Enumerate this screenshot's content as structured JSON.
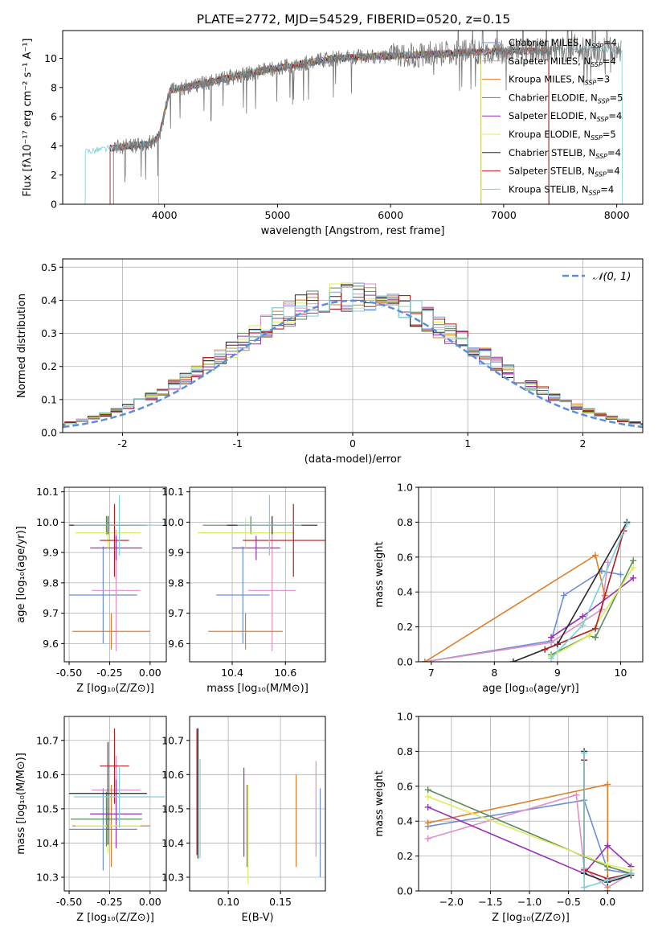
{
  "figure": {
    "title": "PLATE=2772, MJD=54529, FIBERID=0520, z=0.15"
  },
  "colors": {
    "Chabrier MILES": "#6d8fd9",
    "Salpeter MILES": "#e08fc4",
    "Kroupa MILES": "#dd7f2a",
    "Chabrier ELODIE": "#5e8a5c",
    "Salpeter ELODIE": "#9a2fb5",
    "Kroupa ELODIE": "#dcec5e",
    "Chabrier STELIB": "#2a2a2a",
    "Salpeter STELIB": "#b01f1f",
    "Kroupa STELIB": "#7ecfd9",
    "observed": "#7a7a7a",
    "normal": "#5a8fd8"
  },
  "chart_data": [
    {
      "id": "spectrum",
      "type": "line",
      "xlabel": "wavelength [Angstrom, rest frame]",
      "ylabel": "Flux [fλ10⁻¹⁷ erg cm⁻² s⁻¹ A⁻¹]",
      "xlim": [
        3100,
        8230
      ],
      "ylim": [
        0,
        11.9
      ],
      "xticks": [
        4000,
        5000,
        6000,
        7000,
        8000
      ],
      "yticks": [
        0,
        2,
        4,
        6,
        8,
        10
      ],
      "legend": [
        {
          "name": "Chabrier MILES",
          "nssp": "4"
        },
        {
          "name": "Salpeter MILES",
          "nssp": "4"
        },
        {
          "name": "Kroupa MILES",
          "nssp": "3"
        },
        {
          "name": "Chabrier ELODIE",
          "nssp": "5"
        },
        {
          "name": "Salpeter ELODIE",
          "nssp": "4"
        },
        {
          "name": "Kroupa ELODIE",
          "nssp": "5"
        },
        {
          "name": "Chabrier STELIB",
          "nssp": "4"
        },
        {
          "name": "Salpeter STELIB",
          "nssp": "4"
        },
        {
          "name": "Kroupa STELIB",
          "nssp": "4"
        }
      ],
      "continuum": {
        "wavelength": [
          3300,
          3500,
          3700,
          3850,
          3950,
          4050,
          4300,
          4600,
          4900,
          5200,
          5500,
          5800,
          6100,
          6400,
          6700,
          7000,
          7300,
          7600,
          7900,
          8050
        ],
        "flux": [
          3.6,
          3.8,
          4.0,
          4.1,
          4.6,
          7.8,
          8.2,
          8.7,
          9.2,
          9.6,
          10.0,
          10.1,
          10.2,
          10.3,
          10.4,
          10.5,
          10.5,
          10.6,
          10.6,
          10.6
        ]
      }
    },
    {
      "id": "residuals",
      "type": "step",
      "xlabel": "(data-model)/error",
      "ylabel": "Normed distribution",
      "xlim": [
        -2.52,
        2.52
      ],
      "ylim": [
        0,
        0.525
      ],
      "xticks": [
        -2,
        -1,
        0,
        1,
        2
      ],
      "yticks": [
        0.0,
        0.1,
        0.2,
        0.3,
        0.4,
        0.5
      ],
      "legend": "𝒩(0, 1)",
      "bin_width": 0.1
    },
    {
      "id": "age_Z",
      "type": "errorbar",
      "xlabel": "Z [log₁₀(Z/Z⊙)]",
      "ylabel": "age  [log₁₀(age/yr)]",
      "xlim": [
        -0.53,
        0.1
      ],
      "ylim": [
        9.54,
        10.115
      ],
      "xticks": [
        -0.5,
        -0.25,
        0.0
      ],
      "xticklabels": [
        "-0.50",
        "-0.25",
        "0.00"
      ],
      "yticks": [
        9.6,
        9.7,
        9.8,
        9.9,
        10.0,
        10.1
      ],
      "points": [
        {
          "series": "Chabrier MILES",
          "x": -0.29,
          "xerr": 0.21,
          "y": 9.76,
          "yerr": 0.16
        },
        {
          "series": "Salpeter MILES",
          "x": -0.21,
          "xerr": 0.15,
          "y": 9.775,
          "yerr": 0.2
        },
        {
          "series": "Kroupa MILES",
          "x": -0.24,
          "xerr": 0.24,
          "y": 9.64,
          "yerr": 0.06
        },
        {
          "series": "Chabrier ELODIE",
          "x": -0.27,
          "xerr": 0.22,
          "y": 9.99,
          "yerr": 0.03
        },
        {
          "series": "Salpeter ELODIE",
          "x": -0.21,
          "xerr": 0.16,
          "y": 9.915,
          "yerr": 0.04
        },
        {
          "series": "Kroupa ELODIE",
          "x": -0.26,
          "xerr": 0.2,
          "y": 9.965,
          "yerr": 0.05
        },
        {
          "series": "Chabrier STELIB",
          "x": -0.26,
          "xerr": 0.24,
          "y": 9.99,
          "yerr": 0.03
        },
        {
          "series": "Salpeter STELIB",
          "x": -0.22,
          "xerr": 0.09,
          "y": 9.94,
          "yerr": 0.12
        },
        {
          "series": "Kroupa STELIB",
          "x": -0.19,
          "xerr": 0.28,
          "y": 9.99,
          "yerr": 0.1
        }
      ]
    },
    {
      "id": "age_mass",
      "type": "errorbar",
      "xlabel": "mass [log₁₀(M/M⊙)]",
      "ylabel": "",
      "xlim": [
        10.24,
        10.75
      ],
      "ylim": [
        9.54,
        10.115
      ],
      "xticks": [
        10.4,
        10.6
      ],
      "xticklabels": [
        "10.4",
        "10.6"
      ],
      "yticks": [
        9.6,
        9.7,
        9.8,
        9.9,
        10.0,
        10.1
      ],
      "points": [
        {
          "series": "Chabrier MILES",
          "x": 10.44,
          "xerr": 0.1,
          "y": 9.76,
          "yerr": 0.16
        },
        {
          "series": "Salpeter MILES",
          "x": 10.55,
          "xerr": 0.09,
          "y": 9.775,
          "yerr": 0.2
        },
        {
          "series": "Kroupa MILES",
          "x": 10.45,
          "xerr": 0.14,
          "y": 9.64,
          "yerr": 0.06
        },
        {
          "series": "Chabrier ELODIE",
          "x": 10.47,
          "xerr": 0.18,
          "y": 9.99,
          "yerr": 0.03
        },
        {
          "series": "Salpeter ELODIE",
          "x": 10.49,
          "xerr": 0.09,
          "y": 9.915,
          "yerr": 0.04
        },
        {
          "series": "Kroupa ELODIE",
          "x": 10.45,
          "xerr": 0.18,
          "y": 9.965,
          "yerr": 0.05
        },
        {
          "series": "Chabrier STELIB",
          "x": 10.55,
          "xerr": 0.17,
          "y": 9.99,
          "yerr": 0.03
        },
        {
          "series": "Salpeter STELIB",
          "x": 10.63,
          "xerr": 0.19,
          "y": 9.94,
          "yerr": 0.12
        },
        {
          "series": "Kroupa STELIB",
          "x": 10.54,
          "xerr": 0.12,
          "y": 9.99,
          "yerr": 0.1
        }
      ]
    },
    {
      "id": "massweight_age",
      "type": "line",
      "xlabel": "age  [log₁₀(age/yr)]",
      "ylabel": "mass weight",
      "xlim": [
        6.8,
        10.35
      ],
      "ylim": [
        0,
        1.0
      ],
      "xticks": [
        7,
        8,
        9,
        10
      ],
      "yticks": [
        0.0,
        0.2,
        0.4,
        0.6,
        0.8,
        1.0
      ],
      "series": [
        {
          "name": "Chabrier MILES",
          "x": [
            6.9,
            8.9,
            9.1,
            9.7,
            10.0
          ],
          "y": [
            0.0,
            0.12,
            0.38,
            0.52,
            0.5
          ]
        },
        {
          "name": "Salpeter MILES",
          "x": [
            6.9,
            8.9,
            9.7,
            9.8
          ],
          "y": [
            0.0,
            0.11,
            0.3,
            0.57
          ]
        },
        {
          "name": "Kroupa MILES",
          "x": [
            6.9,
            9.6,
            9.75
          ],
          "y": [
            0.0,
            0.61,
            0.38
          ]
        },
        {
          "name": "Chabrier ELODIE",
          "x": [
            8.9,
            9.5,
            9.6,
            10.2
          ],
          "y": [
            0.04,
            0.15,
            0.14,
            0.58
          ]
        },
        {
          "name": "Salpeter ELODIE",
          "x": [
            8.9,
            9.4,
            10.2
          ],
          "y": [
            0.14,
            0.26,
            0.48
          ]
        },
        {
          "name": "Kroupa ELODIE",
          "x": [
            8.9,
            9.5,
            10.2
          ],
          "y": [
            0.03,
            0.15,
            0.54
          ]
        },
        {
          "name": "Chabrier STELIB",
          "x": [
            8.3,
            9.0,
            10.1
          ],
          "y": [
            0.0,
            0.1,
            0.8
          ]
        },
        {
          "name": "Salpeter STELIB",
          "x": [
            8.8,
            9.6,
            10.05
          ],
          "y": [
            0.07,
            0.19,
            0.75
          ]
        },
        {
          "name": "Kroupa STELIB",
          "x": [
            8.9,
            9.4,
            10.1
          ],
          "y": [
            0.02,
            0.21,
            0.79
          ]
        }
      ]
    },
    {
      "id": "mass_Z",
      "type": "errorbar",
      "xlabel": "Z [log₁₀(Z/Z⊙)]",
      "ylabel": "mass [log₁₀(M/M⊙)]",
      "xlim": [
        -0.53,
        0.1
      ],
      "ylim": [
        10.26,
        10.77
      ],
      "xticks": [
        -0.5,
        -0.25,
        0.0
      ],
      "xticklabels": [
        "-0.50",
        "-0.25",
        "0.00"
      ],
      "yticks": [
        10.3,
        10.4,
        10.5,
        10.6,
        10.7
      ],
      "points": [
        {
          "series": "Chabrier MILES",
          "x": -0.29,
          "xerr": 0.21,
          "y": 10.44,
          "yerr": 0.12
        },
        {
          "series": "Salpeter MILES",
          "x": -0.21,
          "xerr": 0.15,
          "y": 10.555,
          "yerr": 0.1
        },
        {
          "series": "Kroupa MILES",
          "x": -0.24,
          "xerr": 0.24,
          "y": 10.45,
          "yerr": 0.12
        },
        {
          "series": "Chabrier ELODIE",
          "x": -0.27,
          "xerr": 0.22,
          "y": 10.47,
          "yerr": 0.08
        },
        {
          "series": "Salpeter ELODIE",
          "x": -0.21,
          "xerr": 0.16,
          "y": 10.485,
          "yerr": 0.1
        },
        {
          "series": "Kroupa ELODIE",
          "x": -0.26,
          "xerr": 0.2,
          "y": 10.45,
          "yerr": 0.08
        },
        {
          "series": "Chabrier STELIB",
          "x": -0.26,
          "xerr": 0.24,
          "y": 10.545,
          "yerr": 0.15
        },
        {
          "series": "Salpeter STELIB",
          "x": -0.22,
          "xerr": 0.09,
          "y": 10.625,
          "yerr": 0.11
        },
        {
          "series": "Kroupa STELIB",
          "x": -0.19,
          "xerr": 0.28,
          "y": 10.535,
          "yerr": 0.09
        }
      ]
    },
    {
      "id": "mass_EBV",
      "type": "errorbar",
      "xlabel": "E(B-V)",
      "ylabel": "",
      "xlim": [
        0.063,
        0.193
      ],
      "ylim": [
        10.26,
        10.77
      ],
      "xticks": [
        0.1,
        0.15
      ],
      "xticklabels": [
        "0.10",
        "0.15"
      ],
      "yticks": [
        10.3,
        10.4,
        10.5,
        10.6,
        10.7
      ],
      "points": [
        {
          "series": "Chabrier MILES",
          "x": 0.188,
          "xerr": 0,
          "y": 10.43,
          "yerr": 0.13
        },
        {
          "series": "Salpeter MILES",
          "x": 0.184,
          "xerr": 0,
          "y": 10.5,
          "yerr": 0.14
        },
        {
          "series": "Kroupa MILES",
          "x": 0.165,
          "xerr": 0,
          "y": 10.465,
          "yerr": 0.135
        },
        {
          "series": "Chabrier ELODIE",
          "x": 0.118,
          "xerr": 0,
          "y": 10.45,
          "yerr": 0.12
        },
        {
          "series": "Salpeter ELODIE",
          "x": 0.115,
          "xerr": 0,
          "y": 10.49,
          "yerr": 0.13
        },
        {
          "series": "Kroupa ELODIE",
          "x": 0.119,
          "xerr": 0,
          "y": 10.425,
          "yerr": 0.145
        },
        {
          "series": "Chabrier STELIB",
          "x": 0.071,
          "xerr": 0,
          "y": 10.545,
          "yerr": 0.19
        },
        {
          "series": "Salpeter STELIB",
          "x": 0.07,
          "xerr": 0,
          "y": 10.55,
          "yerr": 0.185
        },
        {
          "series": "Kroupa STELIB",
          "x": 0.073,
          "xerr": 0,
          "y": 10.5,
          "yerr": 0.145
        }
      ]
    },
    {
      "id": "massweight_Z",
      "type": "line",
      "xlabel": "Z [log₁₀(Z/Z⊙)]",
      "ylabel": "mass weight",
      "xlim": [
        -2.42,
        0.45
      ],
      "ylim": [
        0,
        1.0
      ],
      "xticks": [
        -2.0,
        -1.5,
        -1.0,
        -0.5,
        0.0
      ],
      "xticklabels": [
        "−2.0",
        "−1.5",
        "−1.0",
        "−0.5",
        "0.0"
      ],
      "yticks": [
        0.0,
        0.2,
        0.4,
        0.6,
        0.8,
        1.0
      ],
      "series": [
        {
          "name": "Chabrier MILES",
          "x": [
            -2.3,
            -0.3,
            0.0,
            0.3
          ],
          "y": [
            0.37,
            0.52,
            0.12,
            0.1
          ]
        },
        {
          "name": "Salpeter MILES",
          "x": [
            -2.3,
            -0.4,
            -0.3,
            0.0,
            0.3
          ],
          "y": [
            0.3,
            0.55,
            0.13,
            0.02,
            0.1
          ]
        },
        {
          "name": "Kroupa MILES",
          "x": [
            -2.3,
            0.0,
            0.0,
            0.0
          ],
          "y": [
            0.39,
            0.61,
            0.0,
            0.0
          ]
        },
        {
          "name": "Chabrier ELODIE",
          "x": [
            -2.3,
            0.0,
            0.3
          ],
          "y": [
            0.58,
            0.14,
            0.1
          ]
        },
        {
          "name": "Salpeter ELODIE",
          "x": [
            -2.3,
            -0.3,
            0.0,
            0.3
          ],
          "y": [
            0.48,
            0.1,
            0.26,
            0.14
          ]
        },
        {
          "name": "Kroupa ELODIE",
          "x": [
            -2.3,
            0.0,
            0.3
          ],
          "y": [
            0.54,
            0.15,
            0.12
          ]
        },
        {
          "name": "Chabrier STELIB",
          "x": [
            -0.3,
            -0.3,
            0.0,
            0.3
          ],
          "y": [
            0.8,
            0.1,
            0.05,
            0.09
          ]
        },
        {
          "name": "Salpeter STELIB",
          "x": [
            -0.3,
            -0.3,
            0.0,
            0.3
          ],
          "y": [
            0.75,
            0.12,
            0.07,
            0.1
          ]
        },
        {
          "name": "Kroupa STELIB",
          "x": [
            -0.3,
            -0.3,
            0.0,
            0.3
          ],
          "y": [
            0.79,
            0.02,
            0.06,
            0.1
          ]
        }
      ]
    }
  ]
}
